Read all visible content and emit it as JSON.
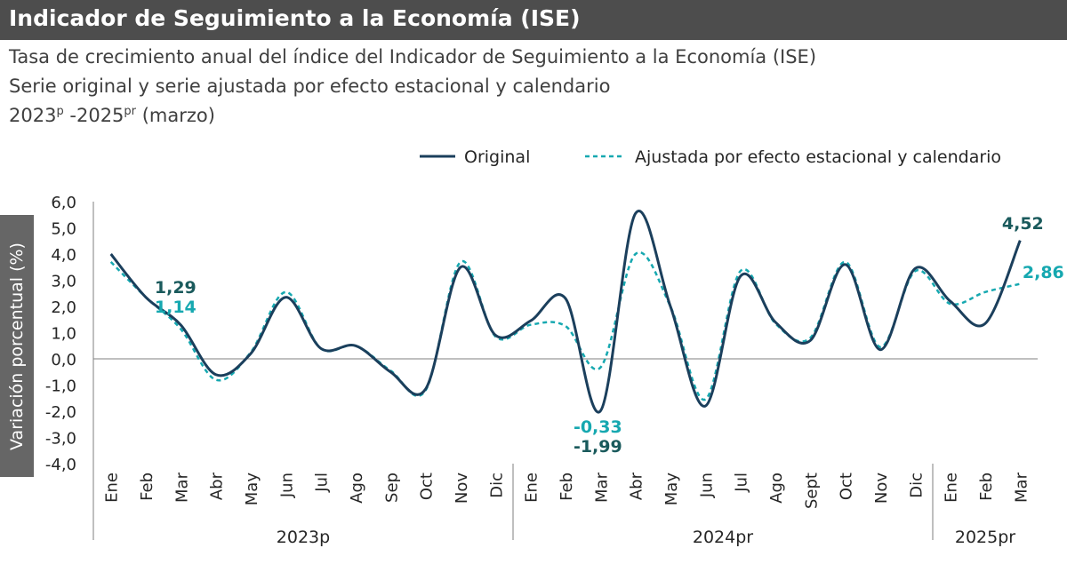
{
  "header": {
    "title": "Indicador de Seguimiento a la Economía (ISE)",
    "subtitle1": "Tasa de crecimiento anual del índice del Indicador de Seguimiento a la Economía (ISE)",
    "subtitle2": "Serie original y serie ajustada por efecto estacional y calendario",
    "subtitle3_a": "2023",
    "subtitle3_sup1": "p",
    "subtitle3_b": " -2025",
    "subtitle3_sup2": "pr",
    "subtitle3_c": " (marzo)"
  },
  "colors": {
    "original": "#1b3f5c",
    "adjusted": "#16a8b0",
    "axis": "#7f7f7f",
    "label_dark": "#1a5a5c"
  },
  "chart_data": {
    "type": "line",
    "ylabel": "Variación porcentual (%)",
    "ylim": [
      -4,
      6
    ],
    "yticks": [
      "6,0",
      "5,0",
      "4,0",
      "3,0",
      "2,0",
      "1,0",
      "0,0",
      "-1,0",
      "-2,0",
      "-3,0",
      "-4,0"
    ],
    "categories": [
      "Ene",
      "Feb",
      "Mar",
      "Abr",
      "May",
      "Jun",
      "Jul",
      "Ago",
      "Sep",
      "Oct",
      "Nov",
      "Dic",
      "Ene",
      "Feb",
      "Mar",
      "Abr",
      "May",
      "Jun",
      "Jul",
      "Ago",
      "Sept",
      "Oct",
      "Nov",
      "Dic",
      "Ene",
      "Feb",
      "Mar"
    ],
    "year_groups": [
      {
        "label": "2023p",
        "count": 12
      },
      {
        "label": "2024pr",
        "count": 12
      },
      {
        "label": "2025pr",
        "count": 3
      }
    ],
    "series": [
      {
        "name": "Original",
        "style": "solid",
        "values": [
          4.0,
          2.35,
          1.29,
          -0.6,
          0.2,
          2.35,
          0.4,
          0.5,
          -0.5,
          -1.15,
          3.5,
          0.9,
          1.45,
          2.3,
          -1.99,
          5.55,
          2.0,
          -1.8,
          3.15,
          1.4,
          0.7,
          3.6,
          0.35,
          3.45,
          2.2,
          1.35,
          4.52
        ]
      },
      {
        "name": "Ajustada por efecto estacional y calendario",
        "style": "dashed",
        "values": [
          3.7,
          2.35,
          1.14,
          -0.8,
          0.25,
          2.55,
          0.4,
          0.5,
          -0.45,
          -1.2,
          3.7,
          0.85,
          1.3,
          1.25,
          -0.33,
          4.0,
          2.0,
          -1.55,
          3.35,
          1.35,
          0.8,
          3.7,
          0.45,
          3.35,
          2.1,
          2.55,
          2.86
        ]
      }
    ],
    "data_labels": [
      {
        "index": 2,
        "series": 0,
        "text": "1,29"
      },
      {
        "index": 2,
        "series": 1,
        "text": "1,14"
      },
      {
        "index": 14,
        "series": 1,
        "text": "-0,33"
      },
      {
        "index": 14,
        "series": 0,
        "text": "-1,99"
      },
      {
        "index": 26,
        "series": 0,
        "text": "4,52"
      },
      {
        "index": 26,
        "series": 1,
        "text": "2,86"
      }
    ],
    "legend": [
      "Original",
      "Ajustada por efecto estacional y calendario"
    ],
    "legend_position": "top-right"
  }
}
